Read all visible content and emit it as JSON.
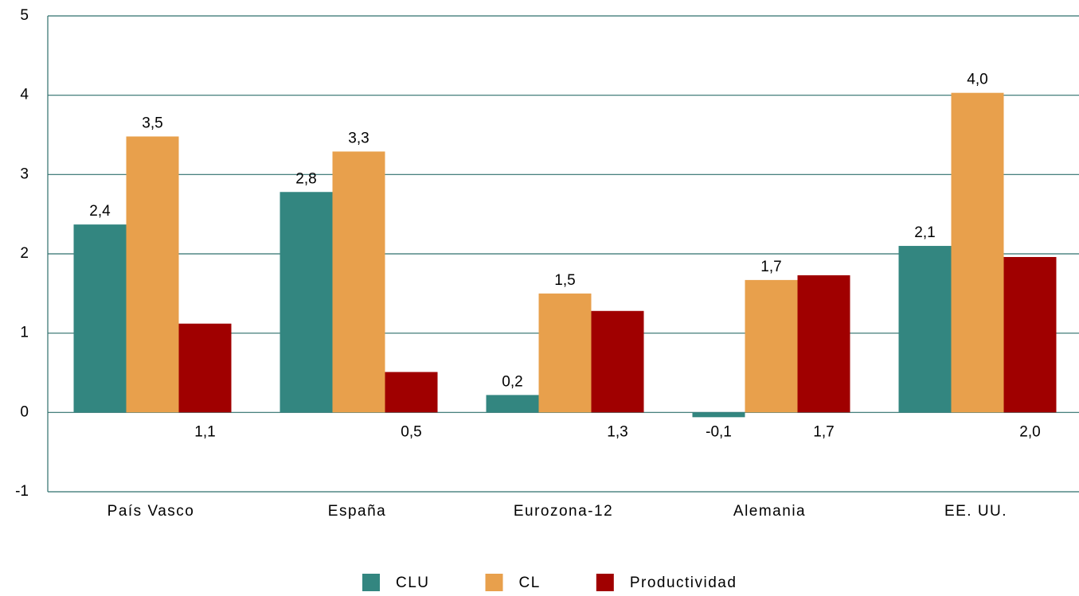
{
  "chart_data": {
    "type": "bar",
    "categories": [
      "País Vasco",
      "España",
      "Eurozona-12",
      "Alemania",
      "EE. UU."
    ],
    "series": [
      {
        "name": "CLU",
        "color": "#338680",
        "values": [
          2.37,
          2.78,
          0.22,
          -0.06,
          2.1
        ],
        "value_labels": [
          "2,4",
          "2,8",
          "0,2",
          "-0,1",
          "2,1"
        ]
      },
      {
        "name": "CL",
        "color": "#e8a04c",
        "values": [
          3.48,
          3.29,
          1.5,
          1.67,
          4.03
        ],
        "value_labels": [
          "3,5",
          "3,3",
          "1,5",
          "1,7",
          "4,0"
        ]
      },
      {
        "name": "Productividad",
        "color": "#a00000",
        "values": [
          1.12,
          0.51,
          1.28,
          1.73,
          1.96
        ],
        "value_labels": [
          "1,1",
          "0,5",
          "1,3",
          "1,7",
          "2,0"
        ]
      }
    ],
    "ylim": [
      -1,
      5
    ],
    "yticks": [
      -1,
      0,
      1,
      2,
      3,
      4,
      5
    ],
    "grid": true,
    "legend": "bottom"
  }
}
